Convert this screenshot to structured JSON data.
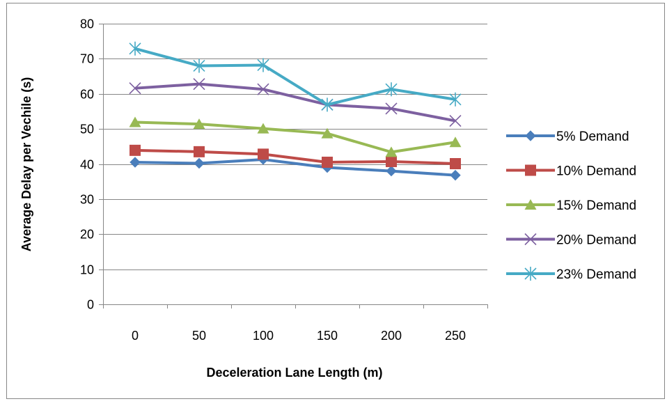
{
  "chart_data": {
    "type": "line",
    "title": "",
    "xlabel": "Deceleration Lane Length (m)",
    "ylabel": "Average Delay per Vechile (s)",
    "categories": [
      "0",
      "50",
      "100",
      "150",
      "200",
      "250"
    ],
    "ylim": [
      0,
      80
    ],
    "yticks": [
      0,
      10,
      20,
      30,
      40,
      50,
      60,
      70,
      80
    ],
    "grid": true,
    "legend_position": "right",
    "series": [
      {
        "name": "5% Demand",
        "color": "#4A7EBB",
        "marker": "diamond",
        "values": [
          40.5,
          40.2,
          41.3,
          39.0,
          38.0,
          36.8
        ]
      },
      {
        "name": "10% Demand",
        "color": "#BE4B48",
        "marker": "square",
        "values": [
          43.9,
          43.5,
          42.8,
          40.5,
          40.7,
          40.1
        ]
      },
      {
        "name": "15% Demand",
        "color": "#98B954",
        "marker": "triangle",
        "values": [
          51.9,
          51.4,
          50.1,
          48.7,
          43.4,
          46.2
        ]
      },
      {
        "name": "20% Demand",
        "color": "#7D60A0",
        "marker": "x",
        "values": [
          61.6,
          62.8,
          61.3,
          56.9,
          55.8,
          52.3
        ]
      },
      {
        "name": "23% Demand",
        "color": "#46AAC5",
        "marker": "star",
        "values": [
          72.9,
          68.0,
          68.2,
          56.9,
          61.3,
          58.4
        ]
      }
    ]
  }
}
